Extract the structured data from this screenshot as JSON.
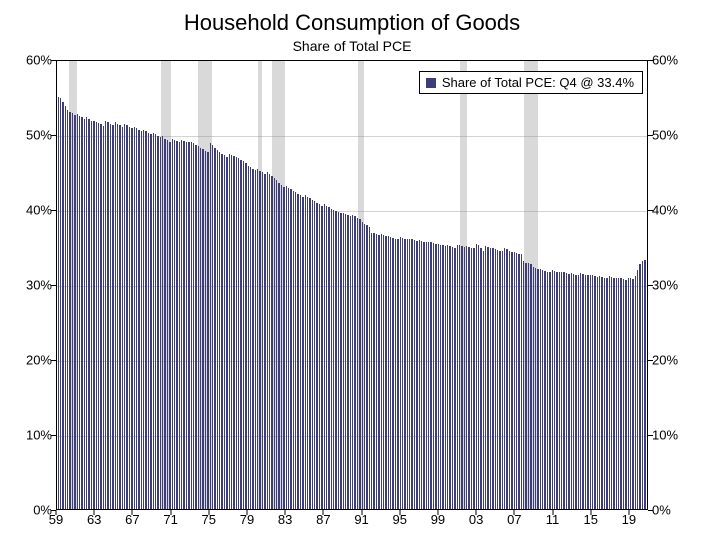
{
  "chart": {
    "type": "bar",
    "title": "Household Consumption of Goods",
    "subtitle": "Share of Total PCE",
    "title_fontsize": 22,
    "subtitle_fontsize": 14,
    "legend": {
      "label": "Share of Total PCE: Q4 @ 33.4%",
      "swatch_color": "#3d3d7a",
      "position": "top-right",
      "border_color": "#000000",
      "background_color": "#ffffff"
    },
    "bar_color": "#3d3d7a",
    "background_color": "#ffffff",
    "recession_color": "#d9d9d9",
    "grid_color": "#808080",
    "grid_opacity": 0.35,
    "border_color": "#000000",
    "axis_font_size": 13,
    "x": {
      "start_year": 1959,
      "end_year": 2020,
      "tick_labels": [
        "59",
        "63",
        "67",
        "71",
        "75",
        "79",
        "83",
        "87",
        "91",
        "95",
        "99",
        "03",
        "07",
        "11",
        "15",
        "19"
      ],
      "tick_years": [
        1959,
        1963,
        1967,
        1971,
        1975,
        1979,
        1983,
        1987,
        1991,
        1995,
        1999,
        2003,
        2007,
        2011,
        2015,
        2019
      ]
    },
    "y": {
      "min": 0,
      "max": 60,
      "tick_step": 10,
      "format": "percent",
      "tick_labels": [
        "0%",
        "10%",
        "20%",
        "30%",
        "40%",
        "50%",
        "60%"
      ],
      "tick_values": [
        0,
        10,
        20,
        30,
        40,
        50,
        60
      ]
    },
    "recessions": [
      {
        "start": 1960.25,
        "end": 1961.1
      },
      {
        "start": 1969.9,
        "end": 1970.9
      },
      {
        "start": 1973.8,
        "end": 1975.2
      },
      {
        "start": 1980.0,
        "end": 1980.5
      },
      {
        "start": 1981.5,
        "end": 1982.9
      },
      {
        "start": 1990.5,
        "end": 1991.2
      },
      {
        "start": 2001.2,
        "end": 2001.9
      },
      {
        "start": 2007.9,
        "end": 2009.4
      }
    ],
    "values": [
      55.2,
      55.0,
      54.5,
      54.0,
      53.5,
      53.2,
      53.0,
      52.8,
      52.9,
      52.6,
      52.5,
      52.3,
      52.5,
      52.2,
      52.0,
      51.9,
      51.8,
      51.7,
      51.5,
      51.3,
      52.0,
      51.8,
      51.6,
      51.4,
      51.8,
      51.6,
      51.4,
      51.2,
      51.6,
      51.4,
      51.2,
      51.0,
      51.2,
      51.0,
      50.8,
      50.6,
      50.8,
      50.6,
      50.4,
      50.2,
      50.4,
      50.2,
      50.0,
      49.8,
      49.9,
      49.6,
      49.4,
      49.1,
      49.5,
      49.4,
      49.3,
      49.2,
      49.4,
      49.3,
      49.2,
      49.1,
      49.2,
      49.0,
      48.8,
      48.6,
      48.4,
      48.2,
      48.0,
      47.8,
      49.0,
      48.7,
      48.4,
      48.1,
      47.8,
      47.6,
      47.4,
      47.2,
      47.5,
      47.4,
      47.3,
      47.2,
      47.0,
      46.8,
      46.6,
      46.4,
      46.0,
      45.8,
      45.6,
      45.4,
      45.5,
      45.3,
      45.1,
      44.9,
      45.2,
      44.9,
      44.6,
      44.3,
      44.0,
      43.7,
      43.4,
      43.1,
      43.2,
      43.0,
      42.8,
      42.6,
      42.4,
      42.2,
      42.0,
      41.8,
      42.0,
      41.8,
      41.6,
      41.4,
      41.2,
      41.0,
      40.8,
      40.6,
      40.8,
      40.6,
      40.4,
      40.2,
      40.0,
      39.9,
      39.8,
      39.7,
      39.6,
      39.5,
      39.4,
      39.3,
      39.4,
      39.2,
      39.0,
      38.8,
      38.4,
      38.2,
      38.0,
      37.8,
      37.0,
      36.9,
      36.8,
      36.7,
      36.8,
      36.7,
      36.6,
      36.5,
      36.4,
      36.3,
      36.2,
      36.1,
      36.4,
      36.3,
      36.2,
      36.1,
      36.2,
      36.1,
      36.0,
      35.9,
      36.0,
      35.9,
      35.8,
      35.7,
      35.8,
      35.7,
      35.6,
      35.5,
      35.5,
      35.4,
      35.3,
      35.2,
      35.3,
      35.2,
      35.1,
      35.0,
      35.4,
      35.3,
      35.2,
      35.1,
      35.2,
      35.1,
      35.0,
      34.9,
      35.5,
      35.4,
      35.0,
      34.6,
      35.2,
      35.1,
      35.0,
      34.9,
      34.8,
      34.7,
      34.6,
      34.5,
      35.0,
      34.8,
      34.6,
      34.4,
      34.4,
      34.3,
      34.2,
      34.1,
      33.2,
      33.0,
      32.9,
      32.8,
      32.4,
      32.3,
      32.2,
      32.1,
      32.0,
      31.9,
      31.8,
      31.7,
      32.0,
      31.9,
      31.8,
      31.7,
      31.8,
      31.7,
      31.6,
      31.5,
      31.6,
      31.5,
      31.4,
      31.3,
      31.6,
      31.5,
      31.4,
      31.3,
      31.4,
      31.3,
      31.2,
      31.1,
      31.2,
      31.1,
      31.0,
      30.9,
      31.2,
      31.1,
      31.0,
      30.9,
      31.0,
      30.9,
      30.8,
      30.7,
      31.0,
      30.9,
      30.8,
      31.2,
      32.0,
      32.8,
      33.2,
      33.4
    ]
  }
}
